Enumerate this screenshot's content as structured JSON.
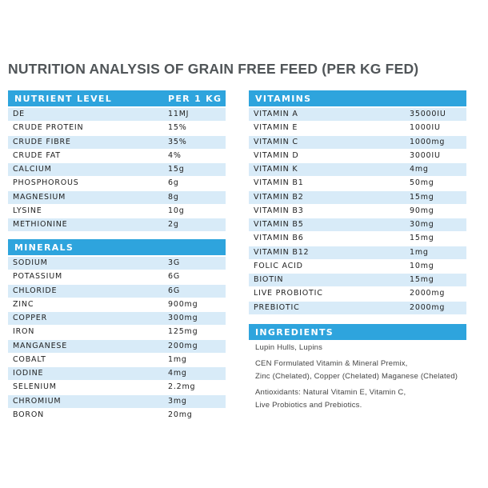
{
  "title": "NUTRITION ANALYSIS OF GRAIN FREE FEED (PER KG FED)",
  "nutrients": {
    "header": [
      "NUTRIENT LEVEL",
      "PER 1 KG"
    ],
    "rows": [
      [
        "DE",
        "11MJ"
      ],
      [
        "CRUDE PROTEIN",
        "15%"
      ],
      [
        "CRUDE FIBRE",
        "35%"
      ],
      [
        "CRUDE FAT",
        "4%"
      ],
      [
        "CALCIUM",
        "15g"
      ],
      [
        "PHOSPHOROUS",
        "6g"
      ],
      [
        "MAGNESIUM",
        "8g"
      ],
      [
        "LYSINE",
        "10g"
      ],
      [
        "METHIONINE",
        "2g"
      ]
    ]
  },
  "minerals": {
    "header": "MINERALS",
    "rows": [
      [
        "SODIUM",
        "3G"
      ],
      [
        "POTASSIUM",
        "6G"
      ],
      [
        "CHLORIDE",
        "6G"
      ],
      [
        "ZINC",
        "900mg"
      ],
      [
        "COPPER",
        "300mg"
      ],
      [
        "IRON",
        "125mg"
      ],
      [
        "MANGANESE",
        "200mg"
      ],
      [
        "COBALT",
        "1mg"
      ],
      [
        "IODINE",
        "4mg"
      ],
      [
        "SELENIUM",
        "2.2mg"
      ],
      [
        "CHROMIUM",
        "3mg"
      ],
      [
        "BORON",
        "20mg"
      ]
    ]
  },
  "vitamins": {
    "header": "VITAMINS",
    "rows": [
      [
        "VITAMIN A",
        "35000IU"
      ],
      [
        "VITAMIN E",
        "1000IU"
      ],
      [
        "VITAMIN C",
        "1000mg"
      ],
      [
        "VITAMIN D",
        "3000IU"
      ],
      [
        "VITAMIN K",
        "4mg"
      ],
      [
        "VITAMIN B1",
        "50mg"
      ],
      [
        "VITAMIN B2",
        "15mg"
      ],
      [
        "VITAMIN B3",
        "90mg"
      ],
      [
        "VITAMIN B5",
        "30mg"
      ],
      [
        "VITAMIN B6",
        "15mg"
      ],
      [
        "VITAMIN B12",
        "1mg"
      ],
      [
        "FOLIC ACID",
        "10mg"
      ],
      [
        "BIOTIN",
        "15mg"
      ],
      [
        "LIVE PROBIOTIC",
        "2000mg"
      ],
      [
        "PREBIOTIC",
        "2000mg"
      ]
    ]
  },
  "ingredients": {
    "header": "INGREDIENTS",
    "paragraphs": [
      [
        "Lupin Hulls, Lupins"
      ],
      [
        "CEN Formulated Vitamin & Mineral Premix,",
        "Zinc (Chelated), Copper (Chelated) Maganese (Chelated)"
      ],
      [
        "Antioxidants: Natural Vitamin E, Vitamin C,",
        "Live Probiotics and Prebiotics."
      ]
    ]
  }
}
